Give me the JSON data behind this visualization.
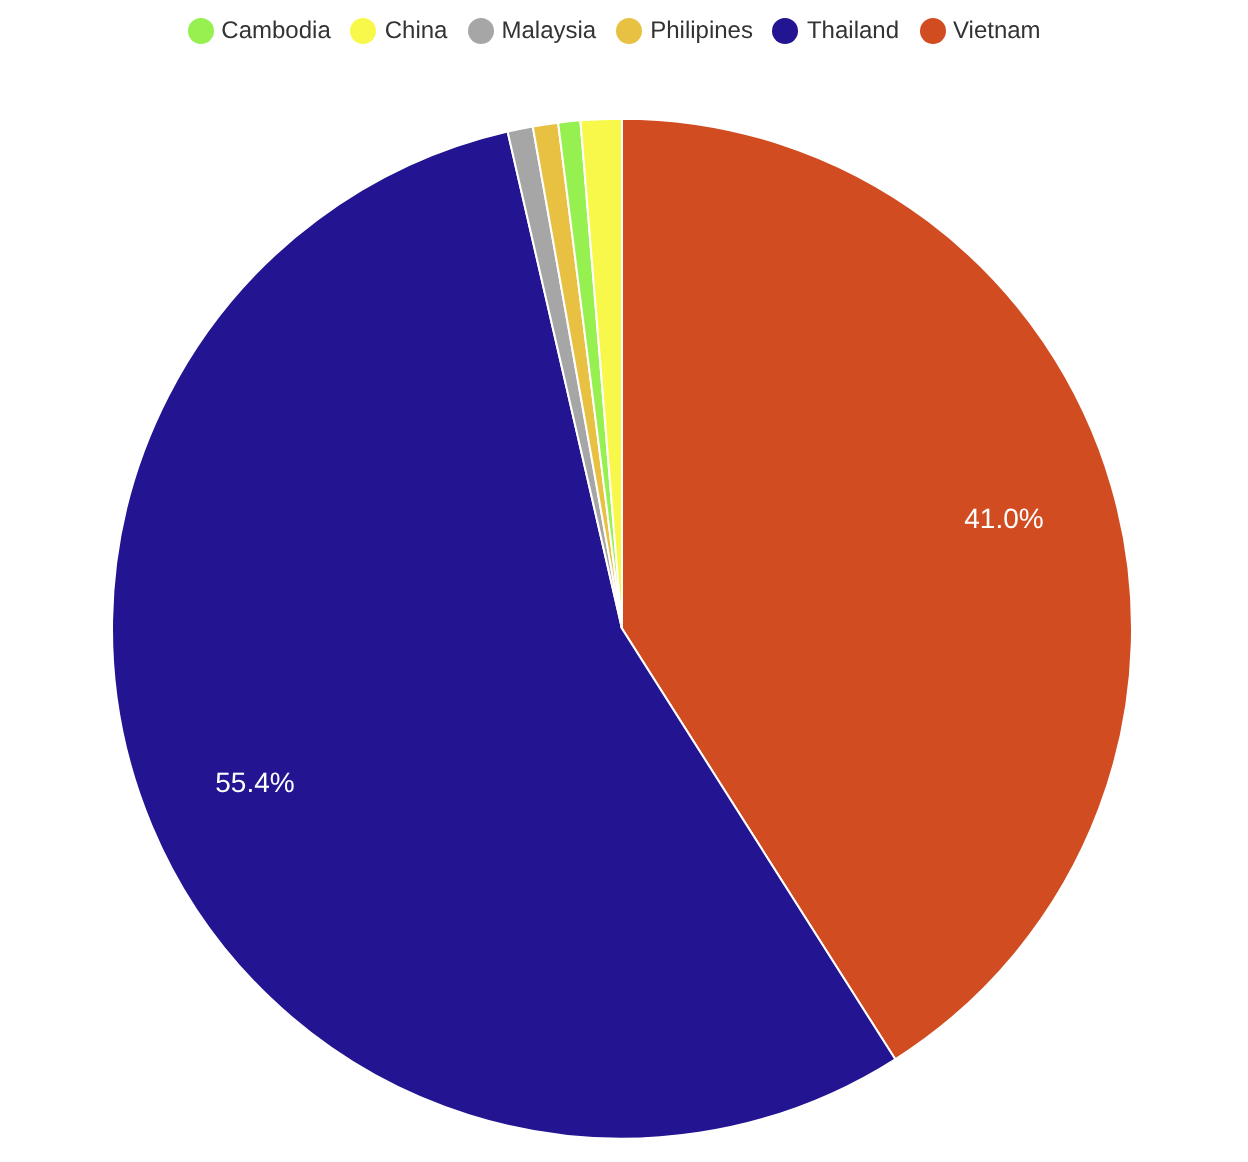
{
  "chart_data": {
    "type": "pie",
    "categories": [
      "Vietnam",
      "Thailand",
      "Malaysia",
      "Philipines",
      "Cambodia",
      "China"
    ],
    "values": [
      41.0,
      55.4,
      0.8,
      0.8,
      0.7,
      1.3
    ],
    "colors": [
      "#d24c21",
      "#231591",
      "#a6a6a6",
      "#e8c142",
      "#96f050",
      "#f8f84a"
    ],
    "value_labels": [
      "41.0%",
      "55.4%",
      null,
      null,
      null,
      null
    ],
    "legend": "top"
  }
}
